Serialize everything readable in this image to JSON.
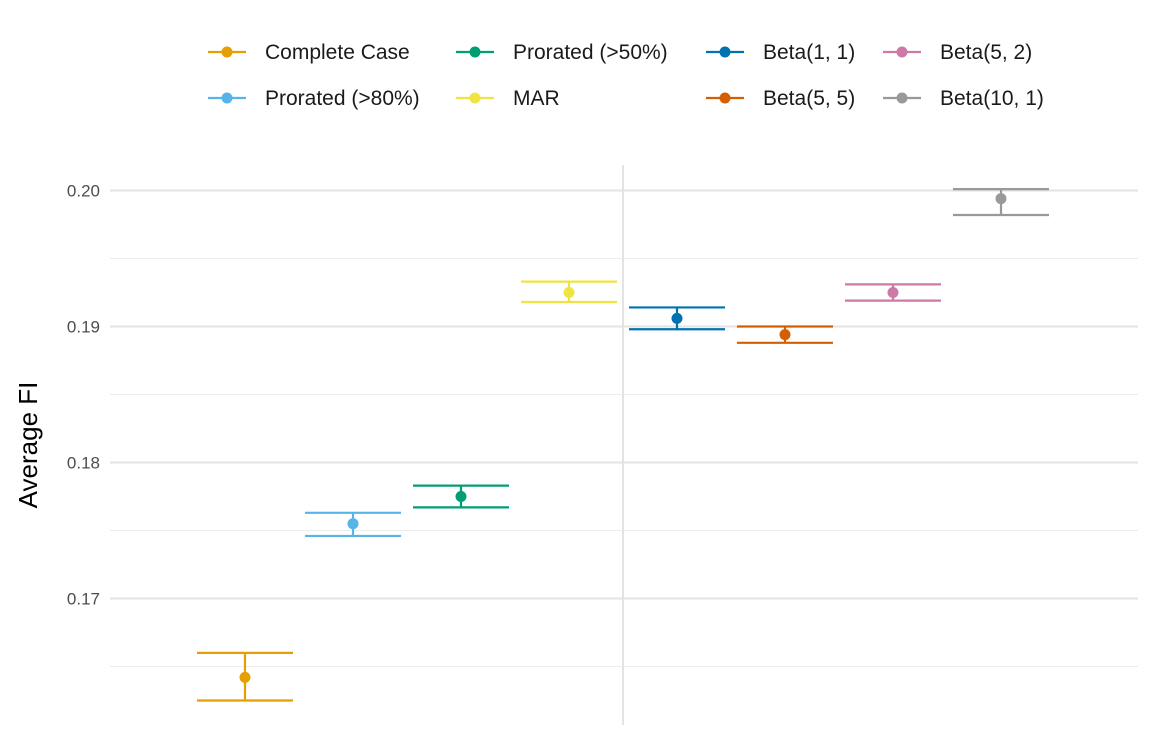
{
  "chart_data": {
    "type": "errorbar",
    "title": "",
    "xlabel": "",
    "ylabel": "Average FI",
    "ylim": [
      0.1625,
      0.202
    ],
    "yticks": [
      0.17,
      0.18,
      0.19,
      0.2
    ],
    "ytick_labels": [
      "0.17",
      "0.18",
      "0.19",
      "0.20"
    ],
    "grid": true,
    "legend_position": "top",
    "series": [
      {
        "name": "Complete Case",
        "color": "#E69F00",
        "x": -0.35,
        "y": 0.1642,
        "lower": 0.1625,
        "upper": 0.166
      },
      {
        "name": "Prorated (>80%)",
        "color": "#56B4E9",
        "x": -0.25,
        "y": 0.1755,
        "lower": 0.1746,
        "upper": 0.1763
      },
      {
        "name": "Prorated (>50%)",
        "color": "#009E73",
        "x": -0.15,
        "y": 0.1775,
        "lower": 0.1767,
        "upper": 0.1783
      },
      {
        "name": "MAR",
        "color": "#F0E442",
        "x": -0.05,
        "y": 0.1925,
        "lower": 0.1918,
        "upper": 0.1933
      },
      {
        "name": "Beta(1, 1)",
        "color": "#0072B2",
        "x": 0.05,
        "y": 0.1906,
        "lower": 0.1898,
        "upper": 0.1914
      },
      {
        "name": "Beta(5, 5)",
        "color": "#D55E00",
        "x": 0.15,
        "y": 0.1894,
        "lower": 0.1888,
        "upper": 0.19
      },
      {
        "name": "Beta(5, 2)",
        "color": "#CC79A7",
        "x": 0.25,
        "y": 0.1925,
        "lower": 0.1919,
        "upper": 0.1931
      },
      {
        "name": "Beta(10, 1)",
        "color": "#999999",
        "x": 0.35,
        "y": 0.1994,
        "lower": 0.1982,
        "upper": 0.2001
      }
    ]
  }
}
